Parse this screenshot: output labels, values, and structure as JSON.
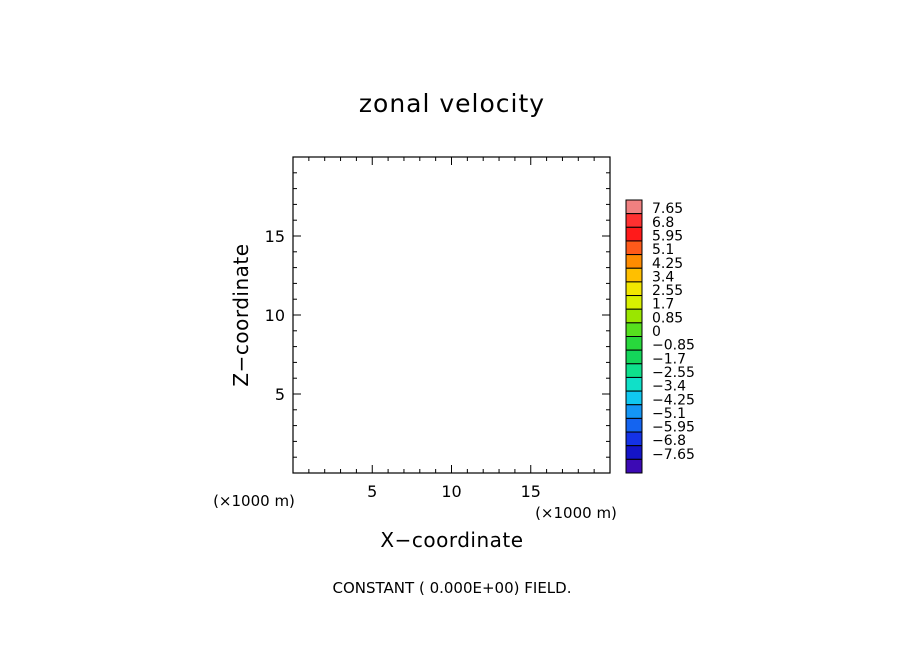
{
  "chart_data": {
    "type": "heatmap",
    "title": "zonal velocity",
    "xlabel": "X−coordinate",
    "ylabel": "Z−coordinate",
    "x_unit": "(×1000 m)",
    "y_unit": "(×1000 m)",
    "xlim": [
      0,
      20
    ],
    "ylim": [
      0,
      20
    ],
    "x_ticks": [
      5,
      10,
      15
    ],
    "y_ticks": [
      5,
      10,
      15
    ],
    "x_tick_labels": [
      "5",
      "10",
      "15"
    ],
    "y_tick_labels": [
      "5",
      "10",
      "15"
    ],
    "x_minor_step": 1,
    "y_minor_step": 1,
    "field_note": "CONSTANT ( 0.000E+00) FIELD.",
    "colorbar": {
      "labels": [
        "7.65",
        "6.8",
        "5.95",
        "5.1",
        "4.25",
        "3.4",
        "2.55",
        "1.7",
        "0.85",
        "0",
        "−0.85",
        "−1.7",
        "−2.55",
        "−3.4",
        "−4.25",
        "−5.1",
        "−5.95",
        "−6.8",
        "−7.65"
      ],
      "colors": [
        "#f08080",
        "#ff3030",
        "#ff1a1a",
        "#ff5a1a",
        "#ff8c00",
        "#ffbf00",
        "#f2e600",
        "#d8f000",
        "#9ae600",
        "#56e01e",
        "#28d83c",
        "#14d65a",
        "#0ee08c",
        "#10e0c8",
        "#10c8f0",
        "#1496f5",
        "#1464f0",
        "#1432e6",
        "#1414c8",
        "#3c0ab4"
      ]
    }
  }
}
